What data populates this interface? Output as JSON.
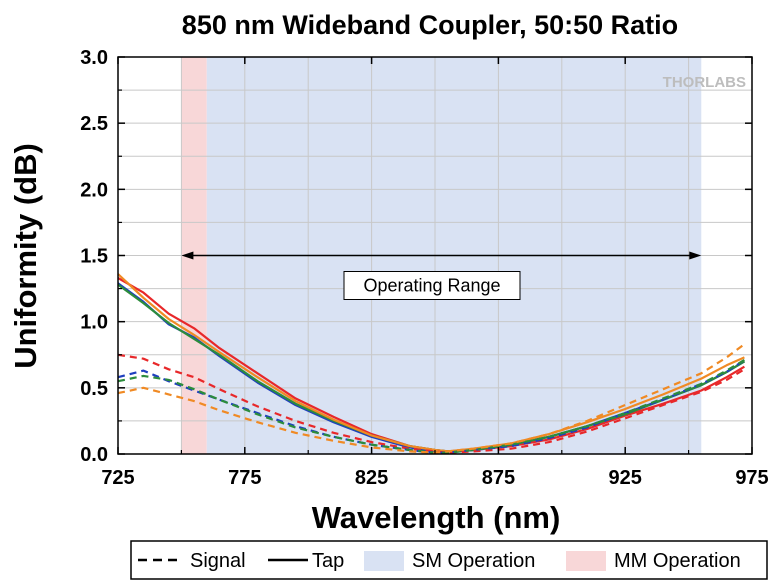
{
  "chart_data": {
    "type": "line",
    "title": "850 nm Wideband Coupler, 50:50 Ratio",
    "xlabel": "Wavelength (nm)",
    "ylabel": "Uniformity (dB)",
    "xlim": [
      725,
      975
    ],
    "ylim": [
      0,
      3.0
    ],
    "x_ticks": [
      725,
      775,
      825,
      875,
      925,
      975
    ],
    "x_tick_labels": [
      "725",
      "775",
      "825",
      "875",
      "925",
      "975"
    ],
    "y_ticks": [
      0,
      0.5,
      1.0,
      1.5,
      2.0,
      2.5,
      3.0
    ],
    "y_tick_labels": [
      "0.0",
      "0.5",
      "1.0",
      "1.5",
      "2.0",
      "2.5",
      "3.0"
    ],
    "grid": true,
    "watermark": "THORLABS",
    "regions": [
      {
        "name": "MM Operation",
        "x_range": [
          750,
          760
        ],
        "color": "#f8d7d8"
      },
      {
        "name": "SM Operation",
        "x_range": [
          760,
          955
        ],
        "color": "#d9e2f3"
      }
    ],
    "annotation": {
      "text": "Operating Range",
      "x_range": [
        750,
        955
      ],
      "y": 1.5
    },
    "series": [
      {
        "color": "#e8282a",
        "style": "solid",
        "x": [
          725,
          735,
          745,
          755,
          765,
          780,
          795,
          810,
          825,
          840,
          850,
          855,
          865,
          880,
          895,
          910,
          925,
          940,
          955,
          965,
          972
        ],
        "y": [
          1.33,
          1.22,
          1.06,
          0.95,
          0.8,
          0.61,
          0.42,
          0.28,
          0.15,
          0.06,
          0.03,
          0.02,
          0.03,
          0.06,
          0.11,
          0.19,
          0.29,
          0.38,
          0.48,
          0.58,
          0.66
        ]
      },
      {
        "color": "#1f3fbf",
        "style": "solid",
        "x": [
          725,
          735,
          745,
          755,
          765,
          780,
          795,
          810,
          825,
          840,
          850,
          855,
          865,
          880,
          895,
          910,
          925,
          940,
          955,
          965,
          972
        ],
        "y": [
          1.29,
          1.15,
          0.98,
          0.88,
          0.74,
          0.54,
          0.37,
          0.24,
          0.13,
          0.05,
          0.02,
          0.02,
          0.03,
          0.07,
          0.13,
          0.21,
          0.31,
          0.41,
          0.52,
          0.62,
          0.7
        ]
      },
      {
        "color": "#2c8c3c",
        "style": "solid",
        "x": [
          725,
          735,
          745,
          755,
          765,
          780,
          795,
          810,
          825,
          840,
          850,
          855,
          865,
          880,
          895,
          910,
          925,
          940,
          955,
          965,
          972
        ],
        "y": [
          1.28,
          1.14,
          0.99,
          0.87,
          0.75,
          0.55,
          0.38,
          0.25,
          0.14,
          0.06,
          0.03,
          0.02,
          0.03,
          0.07,
          0.13,
          0.21,
          0.3,
          0.41,
          0.52,
          0.62,
          0.7
        ]
      },
      {
        "color": "#f08a24",
        "style": "solid",
        "x": [
          725,
          735,
          745,
          755,
          765,
          780,
          795,
          810,
          825,
          840,
          850,
          855,
          865,
          880,
          895,
          910,
          925,
          940,
          955,
          965,
          972
        ],
        "y": [
          1.36,
          1.18,
          1.02,
          0.9,
          0.77,
          0.58,
          0.4,
          0.26,
          0.14,
          0.06,
          0.03,
          0.02,
          0.04,
          0.08,
          0.15,
          0.24,
          0.34,
          0.45,
          0.57,
          0.67,
          0.73
        ]
      },
      {
        "color": "#e8282a",
        "style": "dashed",
        "x": [
          725,
          735,
          745,
          755,
          765,
          780,
          795,
          810,
          825,
          840,
          850,
          855,
          865,
          880,
          895,
          910,
          925,
          940,
          955,
          965,
          972
        ],
        "y": [
          0.75,
          0.72,
          0.64,
          0.58,
          0.49,
          0.36,
          0.25,
          0.16,
          0.09,
          0.04,
          0.02,
          0.01,
          0.02,
          0.04,
          0.09,
          0.17,
          0.27,
          0.37,
          0.47,
          0.56,
          0.64
        ]
      },
      {
        "color": "#1f3fbf",
        "style": "dashed",
        "x": [
          725,
          735,
          745,
          755,
          765,
          780,
          795,
          810,
          825,
          840,
          850,
          855,
          865,
          880,
          895,
          910,
          925,
          940,
          955,
          965,
          972
        ],
        "y": [
          0.58,
          0.63,
          0.55,
          0.48,
          0.41,
          0.31,
          0.21,
          0.13,
          0.07,
          0.03,
          0.01,
          0.01,
          0.03,
          0.06,
          0.12,
          0.2,
          0.31,
          0.41,
          0.53,
          0.62,
          0.71
        ]
      },
      {
        "color": "#2c8c3c",
        "style": "dashed",
        "x": [
          725,
          735,
          745,
          755,
          765,
          780,
          795,
          810,
          825,
          840,
          850,
          855,
          865,
          880,
          895,
          910,
          925,
          940,
          955,
          965,
          972
        ],
        "y": [
          0.55,
          0.59,
          0.56,
          0.49,
          0.41,
          0.3,
          0.2,
          0.13,
          0.07,
          0.03,
          0.01,
          0.01,
          0.03,
          0.07,
          0.13,
          0.21,
          0.31,
          0.42,
          0.53,
          0.63,
          0.71
        ]
      },
      {
        "color": "#f08a24",
        "style": "dashed",
        "x": [
          725,
          735,
          745,
          755,
          765,
          780,
          795,
          810,
          825,
          840,
          850,
          855,
          865,
          880,
          895,
          910,
          925,
          940,
          955,
          965,
          972
        ],
        "y": [
          0.46,
          0.5,
          0.45,
          0.4,
          0.33,
          0.24,
          0.16,
          0.1,
          0.05,
          0.02,
          0.01,
          0.02,
          0.04,
          0.08,
          0.15,
          0.25,
          0.37,
          0.49,
          0.61,
          0.73,
          0.83
        ]
      }
    ],
    "legend": {
      "placement": "bottom",
      "entries": [
        {
          "label": "Signal",
          "kind": "dashed",
          "color": "#000000"
        },
        {
          "label": "Tap",
          "kind": "solid",
          "color": "#000000"
        },
        {
          "label": "SM Operation",
          "kind": "fill",
          "color": "#d9e2f3"
        },
        {
          "label": "MM Operation",
          "kind": "fill",
          "color": "#f8d7d8"
        }
      ]
    }
  }
}
